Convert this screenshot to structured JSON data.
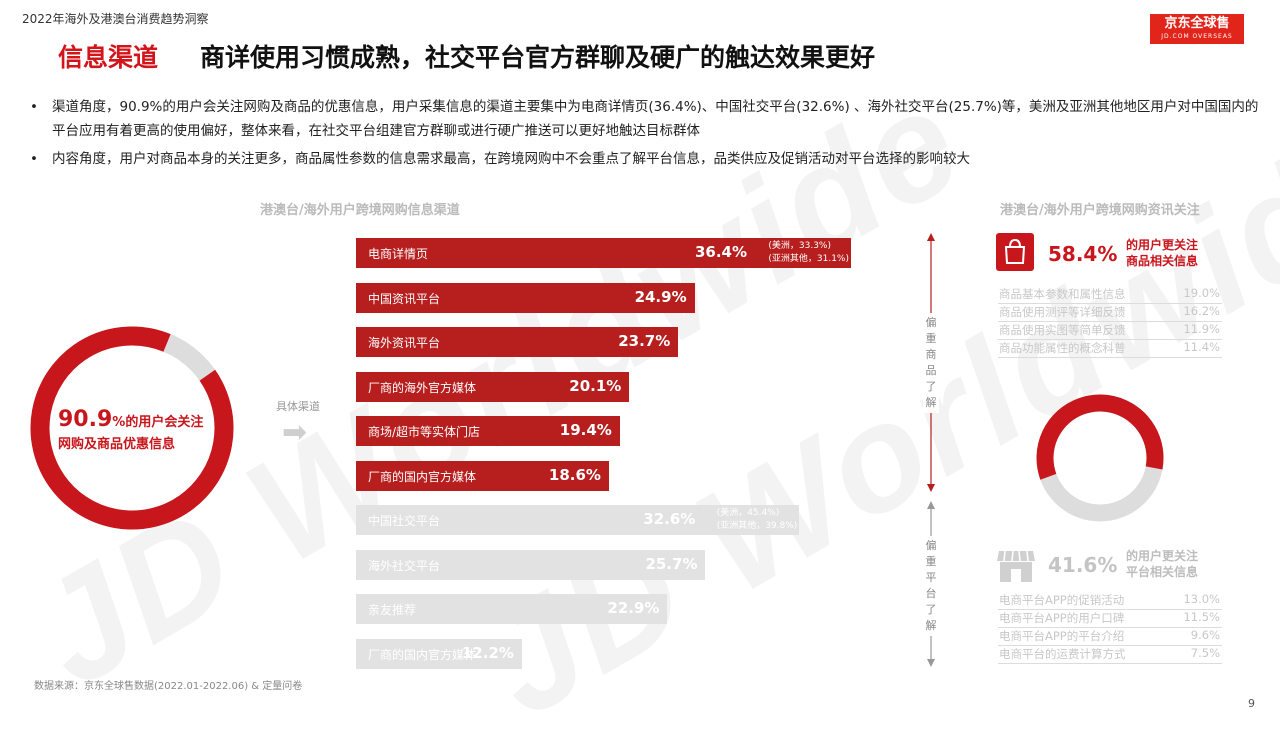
{
  "header": {
    "report_title": "2022年海外及港澳台消费趋势洞察",
    "title_tag": "信息渠道",
    "title_text": "商详使用习惯成熟，社交平台官方群聊及硬广的触达效果更好",
    "logo_main": "京东全球售",
    "logo_sub": "JD.COM OVERSEAS"
  },
  "watermark": "JD Worldwide",
  "bullets": [
    "渠道角度，90.9%的用户会关注网购及商品的优惠信息，用户采集信息的渠道主要集中为电商详情页(36.4%)、中国社交平台(32.6%) 、海外社交平台(25.7%)等，美洲及亚洲其他地区用户对中国国内的平台应用有着更高的使用偏好，整体来看，在社交平台组建官方群聊或进行硬广推送可以更好地触达目标群体",
    "内容角度，用户对商品本身的关注更多，商品属性参数的信息需求最高，在跨境网购中不会重点了解平台信息，品类供应及促销活动对平台选择的影响较大"
  ],
  "bullet_mark": "•",
  "colors": {
    "brand_red": "#d3141b",
    "bar_red": "#b71e1e",
    "bar_gray": "#e2e2e2",
    "donut_gray": "#dddddd"
  },
  "chart_data": [
    {
      "type": "pie",
      "subtype": "donut",
      "categories": [
        "关注优惠信息",
        "其他"
      ],
      "values": [
        90.9,
        9.1
      ],
      "label_value": "90.9",
      "label_unit": "%",
      "label_line1": "的用户会关注",
      "label_line2": "网购及商品优惠信息"
    },
    {
      "type": "bar",
      "orientation": "horizontal",
      "title": "港澳台/海外用户跨境网购信息渠道",
      "side_label": "具体渠道",
      "categories": [
        "电商详情页",
        "中国资讯平台",
        "海外资讯平台",
        "厂商的海外官方媒体",
        "商场/超市等实体门店",
        "厂商的国内官方媒体",
        "中国社交平台",
        "海外社交平台",
        "亲友推荐",
        "厂商的国内官方媒体"
      ],
      "values": [
        36.4,
        24.9,
        23.7,
        20.1,
        19.4,
        18.6,
        32.6,
        25.7,
        22.9,
        12.2
      ],
      "value_labels": [
        "36.4%",
        "24.9%",
        "23.7%",
        "20.1%",
        "19.4%",
        "18.6%",
        "32.6%",
        "25.7%",
        "22.9%",
        "12.2%"
      ],
      "highlight": [
        true,
        true,
        true,
        true,
        true,
        true,
        false,
        false,
        false,
        false
      ],
      "notes": [
        {
          "index": 0,
          "lines": [
            "(美洲，33.3%)",
            "(亚洲其他，31.1%)"
          ]
        },
        {
          "index": 6,
          "lines": [
            "(美洲，45.4%)",
            "(亚洲其他，39.8%)"
          ]
        }
      ],
      "group_labels": [
        "偏重商品了解",
        "偏重平台了解"
      ],
      "xlim": [
        0,
        36.4
      ]
    },
    {
      "type": "pie",
      "subtype": "donut",
      "title": "港澳台/海外用户跨境网购资讯关注",
      "categories": [
        "商品相关信息",
        "平台相关信息"
      ],
      "values": [
        58.4,
        41.6
      ],
      "groups": [
        {
          "percent_label": "58.4%",
          "desc_line1": "的用户更关注",
          "desc_line2": "商品相关信息",
          "icon": "shopping-bag-icon",
          "rows": [
            {
              "label": "商品基本参数和属性信息",
              "value": "19.0%"
            },
            {
              "label": "商品使用测评等详细反馈",
              "value": "16.2%"
            },
            {
              "label": "商品使用实图等简单反馈",
              "value": "11.9%"
            },
            {
              "label": "商品功能属性的概念科普",
              "value": "11.4%"
            }
          ]
        },
        {
          "percent_label": "41.6%",
          "desc_line1": "的用户更关注",
          "desc_line2": "平台相关信息",
          "icon": "storefront-icon",
          "rows": [
            {
              "label": "电商平台APP的促销活动",
              "value": "13.0%"
            },
            {
              "label": "电商平台APP的用户口碑",
              "value": "11.5%"
            },
            {
              "label": "电商平台APP的平台介绍",
              "value": "9.6%"
            },
            {
              "label": "电商平台的运费计算方式",
              "value": "7.5%"
            }
          ]
        }
      ]
    }
  ],
  "footer": {
    "source": "数据来源：京东全球售数据(2022.01-2022.06) & 定量问卷",
    "page_number": "9"
  }
}
